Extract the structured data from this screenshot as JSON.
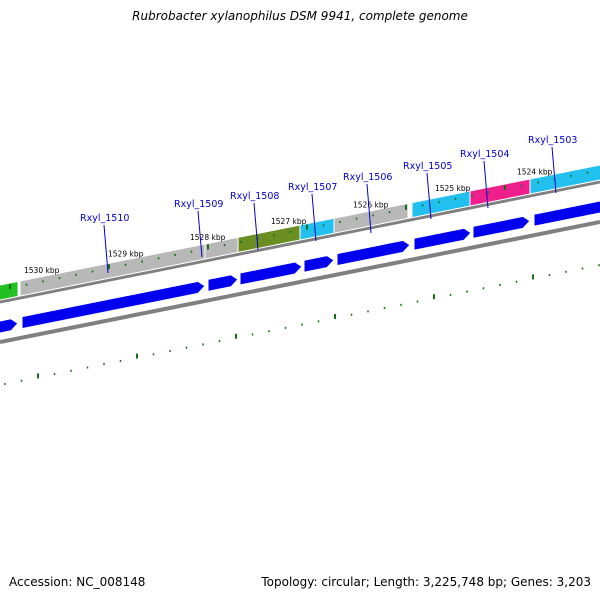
{
  "title": "Rubrobacter xylanophilus DSM 9941, complete genome",
  "footer": {
    "accession": "Accession: NC_008148",
    "summary": "Topology: circular; Length: 3,225,748 bp; Genes: 3,203"
  },
  "colors": {
    "background": "#ffffff",
    "backbone": "#808080",
    "cds_arrow": "#0000ee",
    "gene_label": "#0000cc",
    "tick": "#1a6b1a",
    "cog_grey": "#b8b8b8",
    "cog_olive": "#6b8e23",
    "cog_cyan": "#22c0ee",
    "cog_magenta": "#ee1e8c",
    "cog_green": "#22c022"
  },
  "map": {
    "kbp_labels": [
      "1530 kbp",
      "1529 kbp",
      "1528 kbp",
      "1527 kbp",
      "1526 kbp",
      "1525 kbp",
      "1524 kbp"
    ],
    "genes": [
      {
        "label": "Rxyl_1510",
        "color": "#b8b8b8"
      },
      {
        "label": "Rxyl_1509",
        "color": "#b8b8b8"
      },
      {
        "label": "Rxyl_1508",
        "color": "#6b8e23"
      },
      {
        "label": "Rxyl_1507",
        "color": "#22c0ee"
      },
      {
        "label": "Rxyl_1506",
        "color": "#b8b8b8"
      },
      {
        "label": "Rxyl_1505",
        "color": "#22c0ee"
      },
      {
        "label": "Rxyl_1504",
        "color": "#ee1e8c"
      },
      {
        "label": "Rxyl_1503",
        "color": "#22c0ee"
      }
    ]
  }
}
